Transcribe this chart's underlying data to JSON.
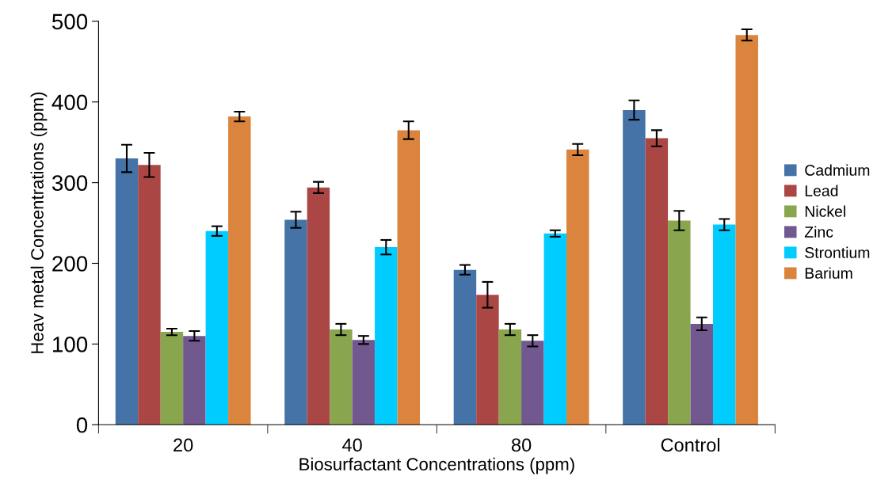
{
  "chart_data": {
    "type": "bar",
    "xlabel": "Biosurfactant Concentrations (ppm)",
    "ylabel": "Heav metal Concentrations (ppm)",
    "categories": [
      "20",
      "40",
      "80",
      "Control"
    ],
    "series": [
      {
        "name": "Cadmium",
        "color": "#4572a7",
        "values": [
          330,
          254,
          192,
          390
        ],
        "errors": [
          17,
          10,
          6,
          12
        ]
      },
      {
        "name": "Lead",
        "color": "#aa4643",
        "values": [
          322,
          294,
          161,
          355
        ],
        "errors": [
          15,
          7,
          16,
          10
        ]
      },
      {
        "name": "Nickel",
        "color": "#89a54e",
        "values": [
          115,
          118,
          118,
          253
        ],
        "errors": [
          4,
          7,
          7,
          12
        ]
      },
      {
        "name": "Zinc",
        "color": "#71588f",
        "values": [
          110,
          105,
          104,
          125
        ],
        "errors": [
          6,
          5,
          7,
          8
        ]
      },
      {
        "name": "Strontium",
        "color": "#00ccff",
        "values": [
          240,
          220,
          237,
          248
        ],
        "errors": [
          6,
          9,
          4,
          7
        ]
      },
      {
        "name": "Barium",
        "color": "#db843d",
        "values": [
          382,
          365,
          341,
          483
        ],
        "errors": [
          6,
          11,
          7,
          7
        ]
      }
    ],
    "ylim": [
      0,
      500
    ],
    "yticks": [
      0,
      100,
      200,
      300,
      400,
      500
    ],
    "grid": false,
    "legend": "right"
  }
}
